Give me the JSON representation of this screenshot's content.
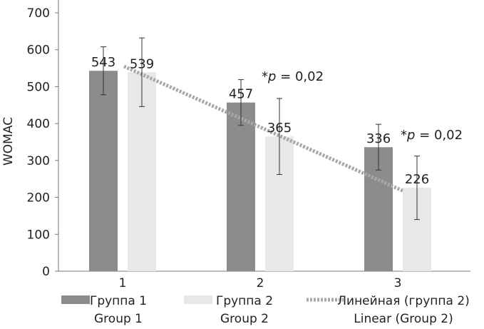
{
  "chart_data": {
    "type": "bar",
    "title": "",
    "xlabel": "",
    "ylabel": "WOMAC",
    "ylim": [
      0,
      700
    ],
    "yticks": [
      0,
      100,
      200,
      300,
      400,
      500,
      600,
      700
    ],
    "categories": [
      "1",
      "2",
      "3"
    ],
    "grid": false,
    "legend_position": "bottom",
    "series": [
      {
        "name_ru": "Группа 1",
        "name_en": "Group 1",
        "color": "#8c8c8c",
        "values": [
          543,
          457,
          336
        ],
        "errors": [
          65,
          62,
          62
        ]
      },
      {
        "name_ru": "Группа 2",
        "name_en": "Group 2",
        "color": "#e8e8e8",
        "values": [
          539,
          365,
          226
        ],
        "errors": [
          93,
          103,
          86
        ]
      }
    ],
    "trendline": {
      "name_ru": "Линейная (группа 2)",
      "name_en": "Linear (Group 2)",
      "color": "#a8a8a8",
      "from_y": 555,
      "to_y": 218
    },
    "annotations": [
      {
        "category_index": 1,
        "prefix": "*",
        "italic": "p",
        "rest": " = 0,02"
      },
      {
        "category_index": 2,
        "prefix": "*",
        "italic": "p",
        "rest": " = 0,02"
      }
    ]
  }
}
